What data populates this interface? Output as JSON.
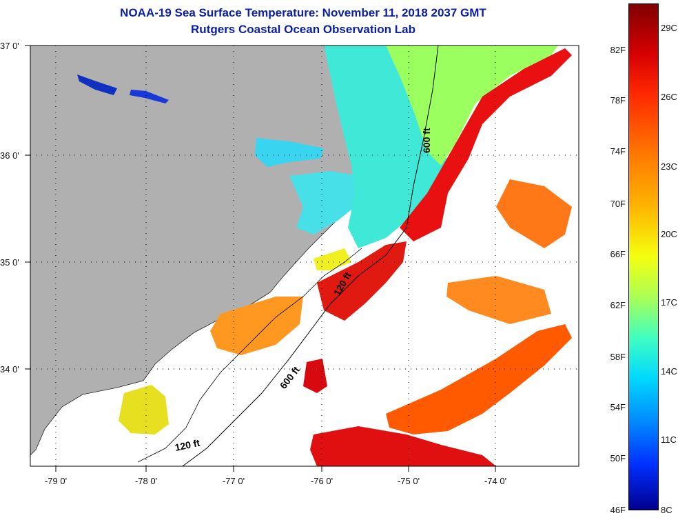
{
  "title": {
    "line1": "NOAA-19 Sea Surface Temperature:  November 11, 2018 2037 GMT",
    "line2": "Rutgers Coastal Ocean Observation Lab"
  },
  "axes": {
    "lat_labels": [
      "37 0'",
      "36 0'",
      "35 0'",
      "34 0'"
    ],
    "lon_labels": [
      "-79 0'",
      "-78 0'",
      "-77 0'",
      "-76 0'",
      "-75 0'",
      "-74 0'"
    ]
  },
  "contours": {
    "label_120_upper": "120 ft",
    "label_600_upper": "600 ft",
    "label_600_lower": "600 ft",
    "label_120_lower": "120 ft"
  },
  "colorbar": {
    "fahrenheit": [
      "82F",
      "78F",
      "74F",
      "70F",
      "66F",
      "62F",
      "58F",
      "54F",
      "50F",
      "46F"
    ],
    "celsius": [
      "29C",
      "26C",
      "23C",
      "20C",
      "17C",
      "14C",
      "11C",
      "8C"
    ]
  },
  "colors": {
    "land": "#b0b0b0",
    "title": "#0a1ea8"
  }
}
